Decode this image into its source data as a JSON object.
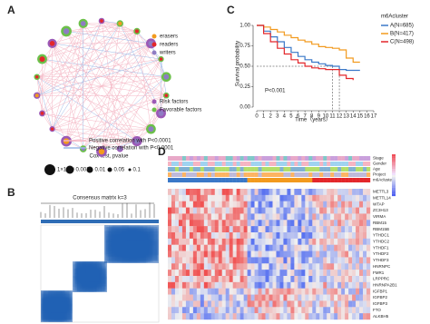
{
  "panel_a": {
    "label": "A",
    "legend_roles": [
      "erasers",
      "readers",
      "writers"
    ],
    "legend_factors": [
      "Risk factors",
      "Favorable factors"
    ],
    "correlation": [
      "Positive correlation with P<0.0001",
      "Negative correlation with P<0.0001"
    ],
    "cox_title": "Cox test, pvalue",
    "cox_sizes": [
      "1×10⁻⁴",
      "0.001",
      "0.01",
      "0.05",
      "0.1"
    ]
  },
  "panel_b": {
    "label": "B",
    "title": "Consensus matrix k=3",
    "legend": [
      "1",
      "2",
      "3"
    ]
  },
  "panel_c": {
    "label": "C",
    "ylabel": "Survival probability",
    "xlabel": "Time（years）",
    "pvalue": "P<0.001",
    "legend_title": "m6Acluster",
    "yticks": [
      {
        "value": 0,
        "label": "0.00"
      },
      {
        "value": 0.25,
        "label": "0.25"
      },
      {
        "value": 0.5,
        "label": "0.50"
      },
      {
        "value": 0.75,
        "label": "0.75"
      },
      {
        "value": 1,
        "label": "1.00"
      }
    ],
    "xticks": [
      0,
      1,
      2,
      3,
      4,
      5,
      6,
      7,
      8,
      9,
      10,
      11,
      12,
      13,
      14,
      15,
      16,
      17
    ],
    "series": [
      {
        "name": "A(N=685)",
        "color": "#3a78c8",
        "x": [
          0,
          1,
          2,
          3,
          4,
          5,
          6,
          7,
          8,
          9,
          10,
          11,
          12,
          13,
          14,
          15
        ],
        "values": [
          1,
          0.93,
          0.86,
          0.8,
          0.73,
          0.67,
          0.62,
          0.58,
          0.55,
          0.53,
          0.51,
          0.5,
          0.46,
          0.45,
          0.45,
          0.45
        ]
      },
      {
        "name": "B(N=417)",
        "color": "#f29a1e",
        "x": [
          0,
          1,
          2,
          3,
          4,
          5,
          6,
          7,
          8,
          9,
          10,
          11,
          12,
          13,
          14,
          15
        ],
        "values": [
          1,
          0.98,
          0.95,
          0.92,
          0.88,
          0.85,
          0.82,
          0.8,
          0.77,
          0.74,
          0.73,
          0.72,
          0.7,
          0.6,
          0.55,
          0.55
        ]
      },
      {
        "name": "C(N=498)",
        "color": "#e3262a",
        "x": [
          0,
          1,
          2,
          3,
          4,
          5,
          6,
          7,
          8,
          9,
          10,
          11,
          12,
          13,
          14
        ],
        "values": [
          1,
          0.9,
          0.8,
          0.72,
          0.65,
          0.58,
          0.54,
          0.5,
          0.48,
          0.47,
          0.46,
          0.46,
          0.39,
          0.35,
          0.33
        ]
      }
    ]
  },
  "panel_d": {
    "label": "D",
    "annotations": [
      "Stage",
      "Gender",
      "Age",
      "Project",
      "m6Acluster"
    ],
    "genes": [
      "METTL3",
      "METTL14",
      "WTAP",
      "ZC3H13",
      "VIRMA",
      "RBM15",
      "RBM15B",
      "YTHDC1",
      "YTHDC2",
      "YTHDF1",
      "YTHDF2",
      "YTHDF3",
      "HNRNPC",
      "FMR1",
      "LRPPRC",
      "HNRNPA2B1",
      "IGFBP1",
      "IGFBP2",
      "IGFBP3",
      "FTO",
      "ALKBH5"
    ]
  }
}
